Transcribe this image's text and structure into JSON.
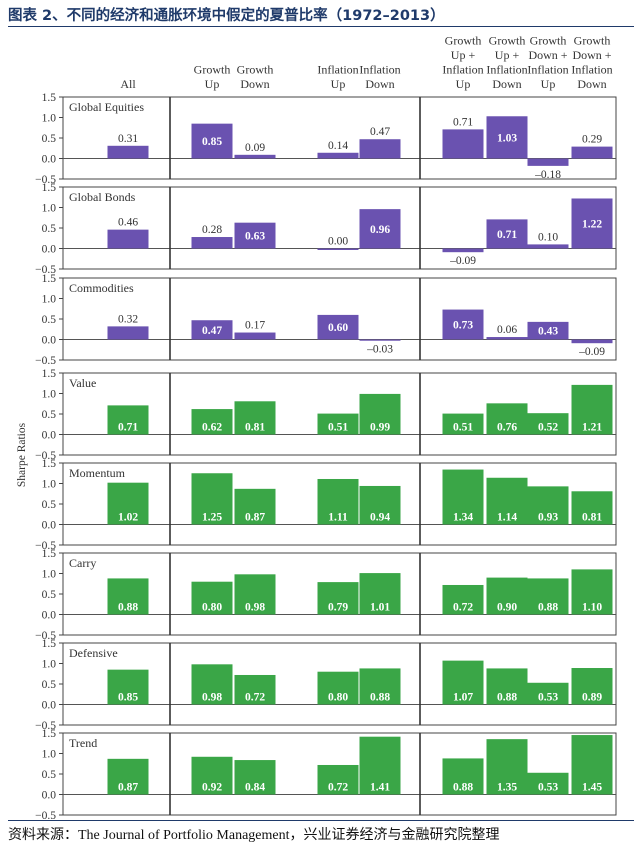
{
  "title": "图表 2、不同的经济和通胀环境中假定的夏普比率（1972–2013）",
  "source": "资料来源：The Journal of Portfolio Management，兴业证券经济与金融研究院整理",
  "chart_data": {
    "type": "bar",
    "ylabel": "Sharpe Ratios",
    "categories": [
      {
        "lines": [
          "All"
        ]
      },
      {
        "lines": [
          "Growth",
          "Up"
        ]
      },
      {
        "lines": [
          "Growth",
          "Down"
        ]
      },
      {
        "lines": [
          "Inflation",
          "Up"
        ]
      },
      {
        "lines": [
          "Inflation",
          "Down"
        ]
      },
      {
        "lines": [
          "Growth",
          "Up +",
          "Inflation",
          "Up"
        ]
      },
      {
        "lines": [
          "Growth",
          "Up +",
          "Inflation",
          "Down"
        ]
      },
      {
        "lines": [
          "Growth",
          "Down +",
          "Inflation",
          "Up"
        ]
      },
      {
        "lines": [
          "Growth",
          "Down +",
          "Inflation",
          "Down"
        ]
      }
    ],
    "yticks": [
      "1.5",
      "1.0",
      "0.5",
      "0.0",
      "−0.5"
    ],
    "ylim": [
      -0.5,
      1.5
    ],
    "colors": {
      "purple": "#6a52b0",
      "green": "#3aa647"
    },
    "panels": [
      {
        "name": "Global Equities",
        "color": "purple",
        "values": [
          0.31,
          0.85,
          0.09,
          0.14,
          0.47,
          0.71,
          1.03,
          -0.18,
          0.29
        ],
        "labels": [
          "0.31",
          "0.85",
          "0.09",
          "0.14",
          "0.47",
          "0.71",
          "1.03",
          "–0.18",
          "0.29"
        ],
        "inside": [
          false,
          true,
          false,
          false,
          false,
          false,
          true,
          false,
          false
        ]
      },
      {
        "name": "Global  Bonds",
        "color": "purple",
        "values": [
          0.46,
          0.28,
          0.63,
          0.0,
          0.96,
          -0.09,
          0.71,
          0.1,
          1.22
        ],
        "labels": [
          "0.46",
          "0.28",
          "0.63",
          "0.00",
          "0.96",
          "–0.09",
          "0.71",
          "0.10",
          "1.22"
        ],
        "inside": [
          false,
          false,
          true,
          false,
          true,
          false,
          true,
          false,
          true
        ]
      },
      {
        "name": "Commodities",
        "color": "purple",
        "values": [
          0.32,
          0.47,
          0.17,
          0.6,
          -0.03,
          0.73,
          0.06,
          0.43,
          -0.09
        ],
        "labels": [
          "0.32",
          "0.47",
          "0.17",
          "0.60",
          "–0.03",
          "0.73",
          "0.06",
          "0.43",
          "–0.09"
        ],
        "inside": [
          false,
          true,
          false,
          true,
          false,
          true,
          false,
          true,
          false
        ]
      },
      {
        "name": "Value",
        "color": "green",
        "values": [
          0.71,
          0.62,
          0.81,
          0.51,
          0.99,
          0.51,
          0.76,
          0.52,
          1.21
        ],
        "labels": [
          "0.71",
          "0.62",
          "0.81",
          "0.51",
          "0.99",
          "0.51",
          "0.76",
          "0.52",
          "1.21"
        ],
        "inside": [
          true,
          true,
          true,
          true,
          true,
          true,
          true,
          true,
          true
        ]
      },
      {
        "name": "Momentum",
        "color": "green",
        "values": [
          1.02,
          1.25,
          0.87,
          1.11,
          0.94,
          1.34,
          1.14,
          0.93,
          0.81
        ],
        "labels": [
          "1.02",
          "1.25",
          "0.87",
          "1.11",
          "0.94",
          "1.34",
          "1.14",
          "0.93",
          "0.81"
        ],
        "inside": [
          true,
          true,
          true,
          true,
          true,
          true,
          true,
          true,
          true
        ]
      },
      {
        "name": "Carry",
        "color": "green",
        "values": [
          0.88,
          0.8,
          0.98,
          0.79,
          1.01,
          0.72,
          0.9,
          0.88,
          1.1
        ],
        "labels": [
          "0.88",
          "0.80",
          "0.98",
          "0.79",
          "1.01",
          "0.72",
          "0.90",
          "0.88",
          "1.10"
        ],
        "inside": [
          true,
          true,
          true,
          true,
          true,
          true,
          true,
          true,
          true
        ]
      },
      {
        "name": "Defensive",
        "color": "green",
        "values": [
          0.85,
          0.98,
          0.72,
          0.8,
          0.88,
          1.07,
          0.88,
          0.53,
          0.89
        ],
        "labels": [
          "0.85",
          "0.98",
          "0.72",
          "0.80",
          "0.88",
          "1.07",
          "0.88",
          "0.53",
          "0.89"
        ],
        "inside": [
          true,
          true,
          true,
          true,
          true,
          true,
          true,
          true,
          true
        ]
      },
      {
        "name": "Trend",
        "color": "green",
        "values": [
          0.87,
          0.92,
          0.84,
          0.72,
          1.41,
          0.88,
          1.35,
          0.53,
          1.45
        ],
        "labels": [
          "0.87",
          "0.92",
          "0.84",
          "0.72",
          "1.41",
          "0.88",
          "1.35",
          "0.53",
          "1.45"
        ],
        "inside": [
          true,
          true,
          true,
          true,
          true,
          true,
          true,
          true,
          true
        ]
      }
    ]
  }
}
